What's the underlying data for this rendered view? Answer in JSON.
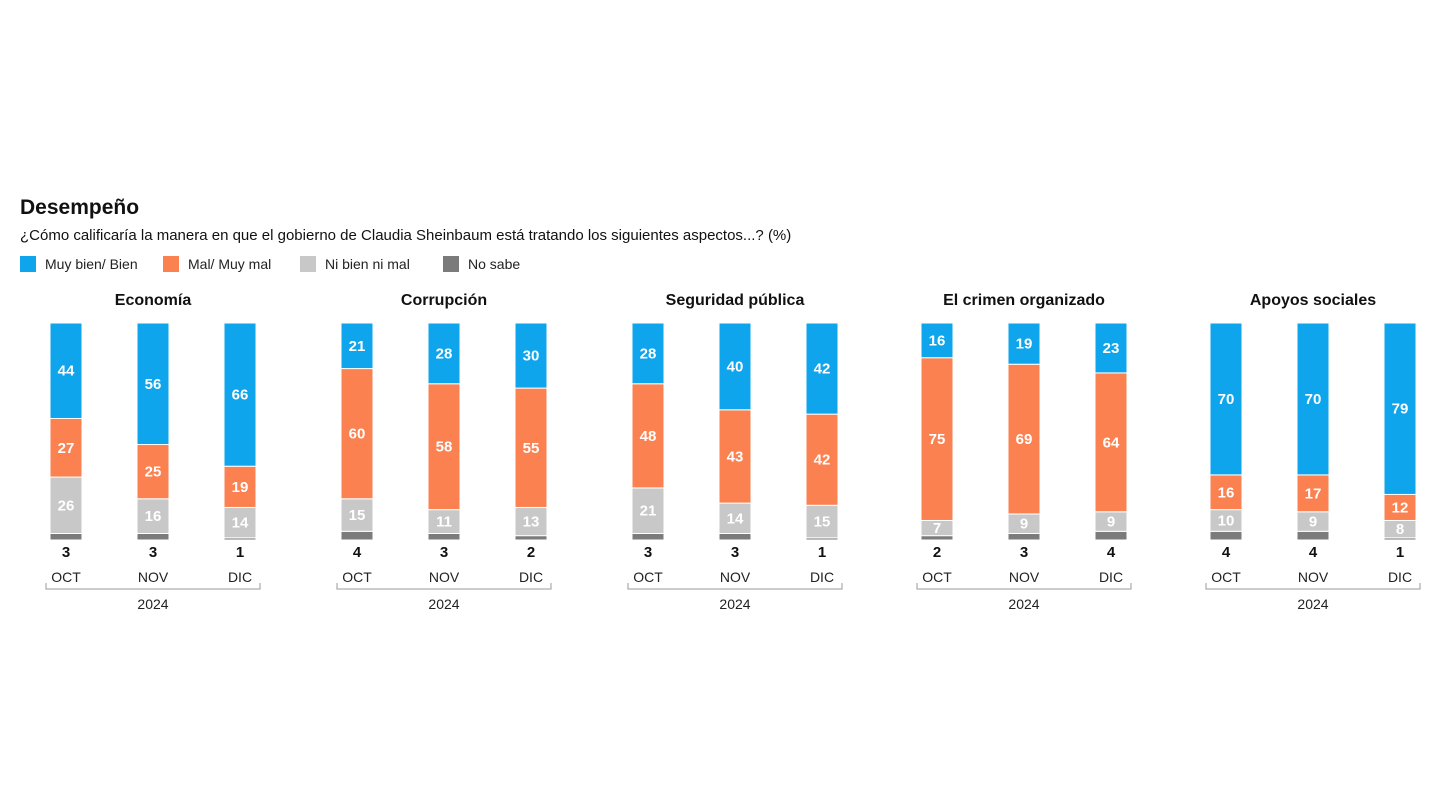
{
  "header": {
    "title": "Desempeño",
    "subtitle": "¿Cómo calificaría la manera en que el gobierno de Claudia Sheinbaum está tratando los siguientes aspectos...? (%)"
  },
  "colors": {
    "bien": "#0ea5ec",
    "mal": "#fb8150",
    "ni": "#c8c8c8",
    "nosabe": "#7b7b7b"
  },
  "legend": [
    {
      "key": "bien",
      "label": "Muy bien/ Bien"
    },
    {
      "key": "mal",
      "label": "Mal/ Muy mal"
    },
    {
      "key": "ni",
      "label": "Ni bien ni mal"
    },
    {
      "key": "nosabe",
      "label": "No sabe"
    }
  ],
  "chart_data": [
    {
      "type": "bar",
      "stacked": true,
      "title": "Economía",
      "categories": [
        "OCT",
        "NOV",
        "DIC"
      ],
      "year_label": "2024",
      "series": [
        {
          "name": "No sabe",
          "values": [
            3,
            3,
            1
          ]
        },
        {
          "name": "Ni bien ni mal",
          "values": [
            26,
            16,
            14
          ]
        },
        {
          "name": "Mal/ Muy mal",
          "values": [
            27,
            25,
            19
          ]
        },
        {
          "name": "Muy bien/ Bien",
          "values": [
            44,
            56,
            66
          ]
        }
      ]
    },
    {
      "type": "bar",
      "stacked": true,
      "title": "Corrupción",
      "categories": [
        "OCT",
        "NOV",
        "DIC"
      ],
      "year_label": "2024",
      "series": [
        {
          "name": "No sabe",
          "values": [
            4,
            3,
            2
          ]
        },
        {
          "name": "Ni bien ni mal",
          "values": [
            15,
            11,
            13
          ]
        },
        {
          "name": "Mal/ Muy mal",
          "values": [
            60,
            58,
            55
          ]
        },
        {
          "name": "Muy bien/ Bien",
          "values": [
            21,
            28,
            30
          ]
        }
      ]
    },
    {
      "type": "bar",
      "stacked": true,
      "title": "Seguridad pública",
      "categories": [
        "OCT",
        "NOV",
        "DIC"
      ],
      "year_label": "2024",
      "series": [
        {
          "name": "No sabe",
          "values": [
            3,
            3,
            1
          ]
        },
        {
          "name": "Ni bien ni mal",
          "values": [
            21,
            14,
            15
          ]
        },
        {
          "name": "Mal/ Muy mal",
          "values": [
            48,
            43,
            42
          ]
        },
        {
          "name": "Muy bien/ Bien",
          "values": [
            28,
            40,
            42
          ]
        }
      ]
    },
    {
      "type": "bar",
      "stacked": true,
      "title": "El crimen organizado",
      "categories": [
        "OCT",
        "NOV",
        "DIC"
      ],
      "year_label": "2024",
      "series": [
        {
          "name": "No sabe",
          "values": [
            2,
            3,
            4
          ]
        },
        {
          "name": "Ni bien ni mal",
          "values": [
            7,
            9,
            9
          ]
        },
        {
          "name": "Mal/ Muy mal",
          "values": [
            75,
            69,
            64
          ]
        },
        {
          "name": "Muy bien/ Bien",
          "values": [
            16,
            19,
            23
          ]
        }
      ]
    },
    {
      "type": "bar",
      "stacked": true,
      "title": "Apoyos sociales",
      "categories": [
        "OCT",
        "NOV",
        "DIC"
      ],
      "year_label": "2024",
      "series": [
        {
          "name": "No sabe",
          "values": [
            4,
            4,
            1
          ]
        },
        {
          "name": "Ni bien ni mal",
          "values": [
            10,
            9,
            8
          ]
        },
        {
          "name": "Mal/ Muy mal",
          "values": [
            16,
            17,
            12
          ]
        },
        {
          "name": "Muy bien/ Bien",
          "values": [
            70,
            70,
            79
          ]
        }
      ]
    }
  ]
}
